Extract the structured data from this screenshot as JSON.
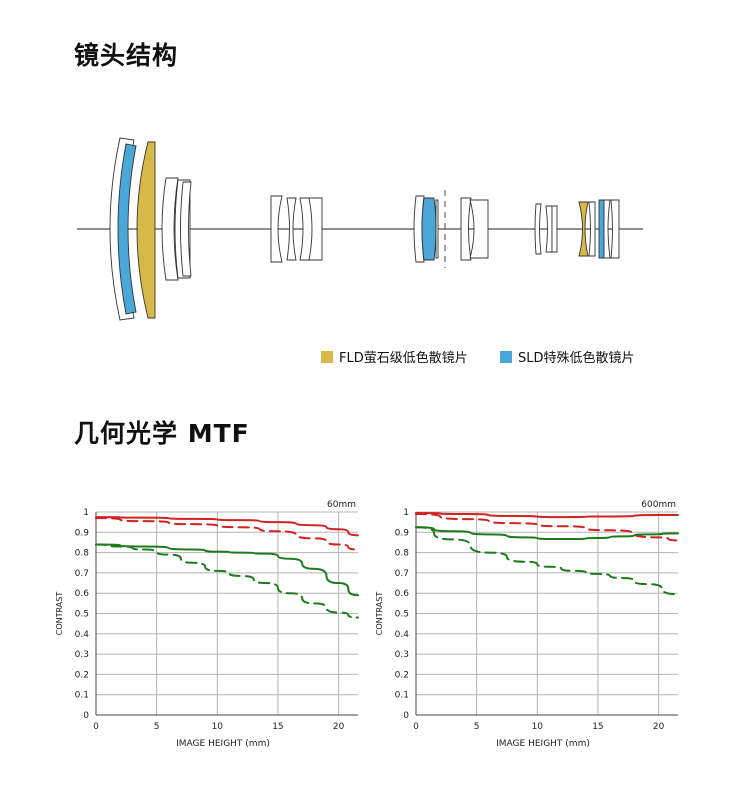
{
  "section_titles": {
    "lens_structure": "镜头结构",
    "mtf": "几何光学 MTF"
  },
  "legend": [
    {
      "label": "FLD萤石级低色散镜片",
      "color": "#d9b84a"
    },
    {
      "label": "SLD特殊低色散镜片",
      "color": "#4aa8d8"
    }
  ],
  "colors": {
    "red": "#d42121",
    "green": "#1d7a1d",
    "grid": "#b5b5b5",
    "fld": "#d9b84a",
    "sld": "#4aa8d8"
  },
  "chart_data": [
    {
      "type": "line",
      "annotation": "60mm",
      "xlabel": "IMAGE HEIGHT (mm)",
      "ylabel": "CONTRAST",
      "xlim": [
        0,
        21.6
      ],
      "ylim": [
        0,
        1
      ],
      "xticks": [
        0,
        5,
        10,
        15,
        20
      ],
      "yticks": [
        0,
        0.1,
        0.2,
        0.3,
        0.4,
        0.5,
        0.6,
        0.7,
        0.8,
        0.9,
        1
      ],
      "grid": true,
      "series": [
        {
          "color": "red",
          "style": "solid",
          "x": [
            0,
            4,
            8,
            12,
            15,
            18,
            20,
            21.6
          ],
          "y": [
            0.975,
            0.972,
            0.966,
            0.96,
            0.95,
            0.935,
            0.915,
            0.885
          ]
        },
        {
          "color": "red",
          "style": "dashed",
          "x": [
            0,
            4,
            8,
            12,
            15,
            18,
            20,
            21.6
          ],
          "y": [
            0.97,
            0.955,
            0.94,
            0.925,
            0.905,
            0.87,
            0.84,
            0.815
          ]
        },
        {
          "color": "green",
          "style": "solid",
          "x": [
            0,
            4,
            8,
            10,
            12,
            14,
            16,
            18,
            20,
            21.6
          ],
          "y": [
            0.84,
            0.83,
            0.815,
            0.805,
            0.8,
            0.795,
            0.77,
            0.72,
            0.65,
            0.59
          ]
        },
        {
          "color": "green",
          "style": "dashed",
          "x": [
            0,
            2,
            4,
            6,
            8,
            10,
            12,
            14,
            16,
            18,
            20,
            21.6
          ],
          "y": [
            0.84,
            0.83,
            0.815,
            0.79,
            0.75,
            0.71,
            0.685,
            0.65,
            0.6,
            0.55,
            0.505,
            0.48
          ]
        }
      ]
    },
    {
      "type": "line",
      "annotation": "600mm",
      "xlabel": "IMAGE HEIGHT (mm)",
      "ylabel": "CONTRAST",
      "xlim": [
        0,
        21.6
      ],
      "ylim": [
        0,
        1
      ],
      "xticks": [
        0,
        5,
        10,
        15,
        20
      ],
      "yticks": [
        0,
        0.1,
        0.2,
        0.3,
        0.4,
        0.5,
        0.6,
        0.7,
        0.8,
        0.9,
        1
      ],
      "grid": true,
      "series": [
        {
          "color": "red",
          "style": "solid",
          "x": [
            0,
            4,
            8,
            12,
            16,
            20,
            21.6
          ],
          "y": [
            0.995,
            0.99,
            0.98,
            0.975,
            0.978,
            0.985,
            0.985
          ]
        },
        {
          "color": "red",
          "style": "dashed",
          "x": [
            0,
            4,
            8,
            12,
            16,
            20,
            21.6
          ],
          "y": [
            0.99,
            0.965,
            0.945,
            0.93,
            0.91,
            0.875,
            0.86
          ]
        },
        {
          "color": "green",
          "style": "solid",
          "x": [
            0,
            3,
            6,
            9,
            11,
            13,
            15,
            17,
            19,
            21.6
          ],
          "y": [
            0.925,
            0.905,
            0.89,
            0.875,
            0.867,
            0.867,
            0.872,
            0.88,
            0.89,
            0.895
          ]
        },
        {
          "color": "green",
          "style": "dashed",
          "x": [
            0,
            3,
            6,
            9,
            11,
            13,
            15,
            17,
            19,
            21.6
          ],
          "y": [
            0.925,
            0.865,
            0.8,
            0.755,
            0.73,
            0.71,
            0.695,
            0.675,
            0.645,
            0.595
          ]
        }
      ]
    }
  ]
}
